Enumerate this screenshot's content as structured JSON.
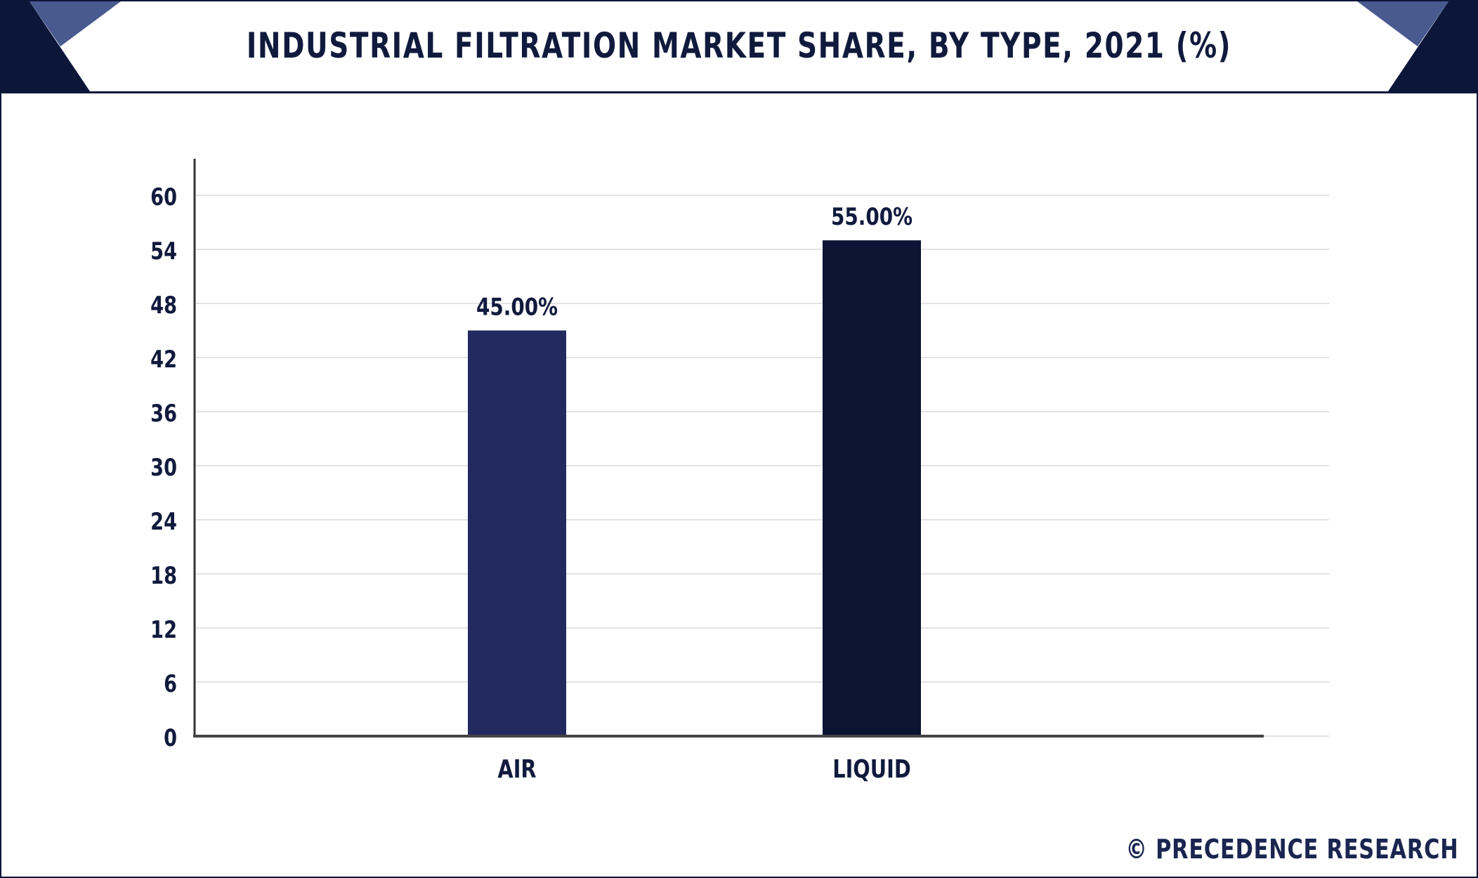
{
  "header": {
    "title": "INDUSTRIAL FILTRATION MARKET SHARE, BY TYPE, 2021 (%)"
  },
  "footer": {
    "credit": "© PRECEDENCE RESEARCH"
  },
  "colors": {
    "frame": "#0b1638",
    "corner_dark": "#0b1638",
    "corner_light": "#485a8f",
    "grid": "#e3e3e3",
    "axis": "#444444",
    "text": "#101a3d"
  },
  "chart_data": {
    "type": "bar",
    "title": "INDUSTRIAL FILTRATION MARKET SHARE, BY TYPE, 2021 (%)",
    "xlabel": "",
    "ylabel": "",
    "ylim": [
      0,
      60
    ],
    "yticks": [
      "0",
      "6",
      "12",
      "18",
      "24",
      "30",
      "36",
      "42",
      "48",
      "54",
      "60"
    ],
    "grid": true,
    "legend": "none",
    "categories": [
      "AIR",
      "LIQUID"
    ],
    "values": [
      45,
      55
    ],
    "value_labels": [
      "45.00%",
      "55.00%"
    ],
    "bar_colors": [
      "#222a60",
      "#0b1433"
    ]
  }
}
